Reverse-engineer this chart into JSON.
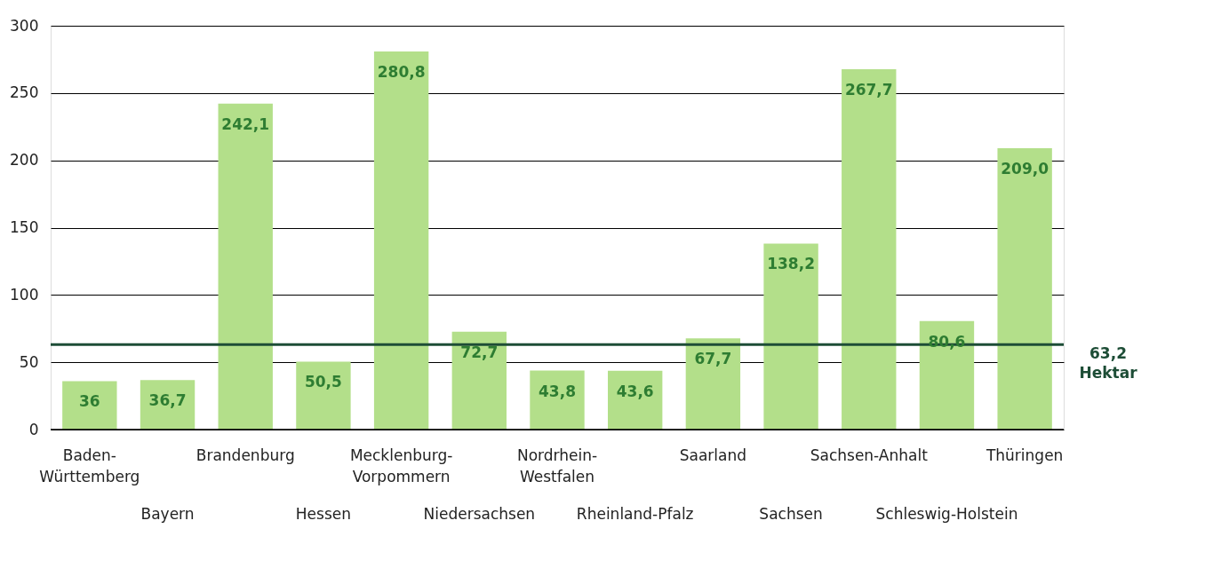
{
  "chart_data": {
    "type": "bar",
    "categories": [
      "Baden-Württemberg",
      "Bayern",
      "Brandenburg",
      "Hessen",
      "Mecklenburg-Vorpommern",
      "Niedersachsen",
      "Nordrhein-Westfalen",
      "Rheinland-Pfalz",
      "Saarland",
      "Sachsen",
      "Sachsen-Anhalt",
      "Schleswig-Holstein",
      "Thüringen"
    ],
    "values": [
      36,
      36.7,
      242.1,
      50.5,
      280.8,
      72.7,
      43.8,
      43.6,
      67.7,
      138.2,
      267.7,
      80.6,
      209.0
    ],
    "value_labels": [
      "36",
      "36,7",
      "242,1",
      "50,5",
      "280,8",
      "72,7",
      "43,8",
      "43,6",
      "67,7",
      "138,2",
      "267,7",
      "80,6",
      "209,0"
    ],
    "color": "#b3df8a",
    "ylim": [
      0,
      300
    ],
    "yticks": [
      0,
      50,
      100,
      150,
      200,
      250,
      300
    ],
    "grid": "y",
    "ref_lines": [
      {
        "axis": "y",
        "value": 63.2,
        "label": "63,2 Hektar",
        "color": "#1d4d36"
      }
    ]
  }
}
